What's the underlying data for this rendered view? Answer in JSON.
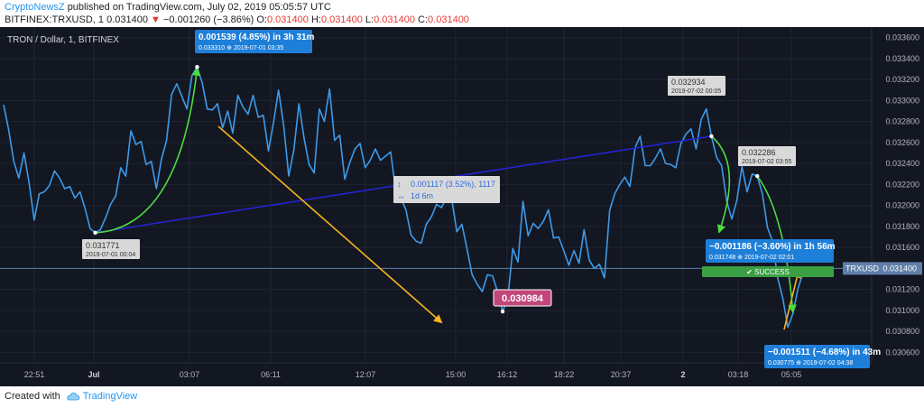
{
  "header": {
    "publisher": "CryptoNewsZ",
    "published_text": "published on TradingView.com, July 02, 2019 05:05:57 UTC",
    "ticker": "BITFINEX:TRXUSD, 1",
    "last": "0.031400",
    "change_arrow": "▼",
    "change": "−0.001260 (−3.86%)",
    "o_label": "O:",
    "o": "0.031400",
    "h_label": "H:",
    "h": "0.031400",
    "l_label": "L:",
    "l": "0.031400",
    "c_label": "C:",
    "c": "0.031400"
  },
  "colors": {
    "background": "#131722",
    "price_line": "#3d9ae8",
    "trendline": "#2424d8",
    "yellow_arrow": "#f5b51b",
    "green_curve": "#4ddc3f",
    "blue_label": "#1e7fd9",
    "price_tag": "#c2467a",
    "success": "#3aa043",
    "current_price": "#5e7fa8"
  },
  "chart_data": {
    "type": "line",
    "title": "TRON / Dollar, 1, BITFINEX",
    "series": [
      {
        "name": "TRXUSD",
        "values": [
          0.03296,
          0.03272,
          0.03242,
          0.03226,
          0.0325,
          0.03222,
          0.03186,
          0.03211,
          0.03213,
          0.03219,
          0.03233,
          0.03226,
          0.03216,
          0.03218,
          0.03207,
          0.03213,
          0.03197,
          0.03178,
          0.03174,
          0.03177,
          0.03188,
          0.03201,
          0.03209,
          0.03236,
          0.03228,
          0.03271,
          0.03258,
          0.03261,
          0.03239,
          0.03242,
          0.03216,
          0.03244,
          0.03262,
          0.03306,
          0.03316,
          0.03304,
          0.03292,
          0.03324,
          0.03332,
          0.03317,
          0.03292,
          0.03291,
          0.03297,
          0.03274,
          0.0329,
          0.03269,
          0.03305,
          0.03294,
          0.03287,
          0.03305,
          0.03284,
          0.03286,
          0.03252,
          0.03279,
          0.0331,
          0.03276,
          0.03228,
          0.03253,
          0.03297,
          0.03264,
          0.03239,
          0.03231,
          0.03292,
          0.0328,
          0.03311,
          0.03262,
          0.03267,
          0.03225,
          0.03241,
          0.03254,
          0.03259,
          0.03236,
          0.03243,
          0.03254,
          0.03243,
          0.03247,
          0.03251,
          0.03215,
          0.03207,
          0.03196,
          0.03172,
          0.03166,
          0.03164,
          0.03182,
          0.03189,
          0.03201,
          0.03198,
          0.03208,
          0.03206,
          0.03175,
          0.03182,
          0.03159,
          0.03134,
          0.03125,
          0.03118,
          0.03134,
          0.03133,
          0.03118,
          0.03099,
          0.03111,
          0.03159,
          0.03146,
          0.03204,
          0.03171,
          0.03183,
          0.03178,
          0.03185,
          0.03196,
          0.03169,
          0.0317,
          0.03157,
          0.03143,
          0.03157,
          0.03145,
          0.03177,
          0.03148,
          0.0314,
          0.03144,
          0.03131,
          0.03195,
          0.03211,
          0.0322,
          0.03227,
          0.03218,
          0.03255,
          0.03266,
          0.03238,
          0.03238,
          0.03245,
          0.03254,
          0.0324,
          0.03239,
          0.03236,
          0.03259,
          0.03268,
          0.03273,
          0.03254,
          0.03282,
          0.03292,
          0.03266,
          0.03246,
          0.03238,
          0.03204,
          0.03187,
          0.03205,
          0.03237,
          0.03213,
          0.0323,
          0.03228,
          0.03211,
          0.03179,
          0.03166,
          0.03131,
          0.03112,
          0.03084,
          0.03097,
          0.03121,
          0.03136
        ]
      }
    ],
    "x_tick_labels": [
      "22:51",
      "Jul",
      "03:07",
      "06:11",
      "12:07",
      "15:00",
      "16:12",
      "18:22",
      "20:37",
      "2",
      "03:18",
      "05:05"
    ],
    "x_tick_bold": [
      "Jul",
      "2"
    ],
    "y_tick_labels": [
      "0.033600",
      "0.033400",
      "0.033200",
      "0.033000",
      "0.032800",
      "0.032600",
      "0.032400",
      "0.032200",
      "0.032000",
      "0.031800",
      "0.031600",
      "0.031400",
      "0.031200",
      "0.031000",
      "0.030800",
      "0.030600"
    ],
    "ylim": [
      0.0305,
      0.0337
    ],
    "current_price_label": "TRXUSD",
    "current_price": 0.0314,
    "annotations": {
      "low1": {
        "value": "0.031771",
        "date": "2019-07-01 00:04"
      },
      "rise": {
        "text": "0.001539 (4.85%) in 3h 31m",
        "sub_price": "0.033310",
        "sub_date": "2019-07-01  03:35"
      },
      "range_box": {
        "line1": "0.001117 (3.52%), 1117",
        "line2": "1d 6m"
      },
      "dip_tag": "0.030984",
      "peak": {
        "value": "0.032934",
        "date": "2019-07-02 00:05"
      },
      "drop1": {
        "text": "−0.001186 (−3.60%) in 1h 56m",
        "sub_price": "0.031748",
        "sub_date": "2019-07-02  02:01"
      },
      "peak2": {
        "value": "0.032286",
        "date": "2019-07-02 03:55"
      },
      "success": "✔ SUCCESS",
      "drop2": {
        "text": "−0.001511 (−4.68%) in 43m",
        "sub_price": "0.030775",
        "sub_date": "2019-07-02  04:38"
      }
    },
    "grid": true
  },
  "footer": {
    "created_with": "Created with",
    "brand": "TradingView"
  }
}
